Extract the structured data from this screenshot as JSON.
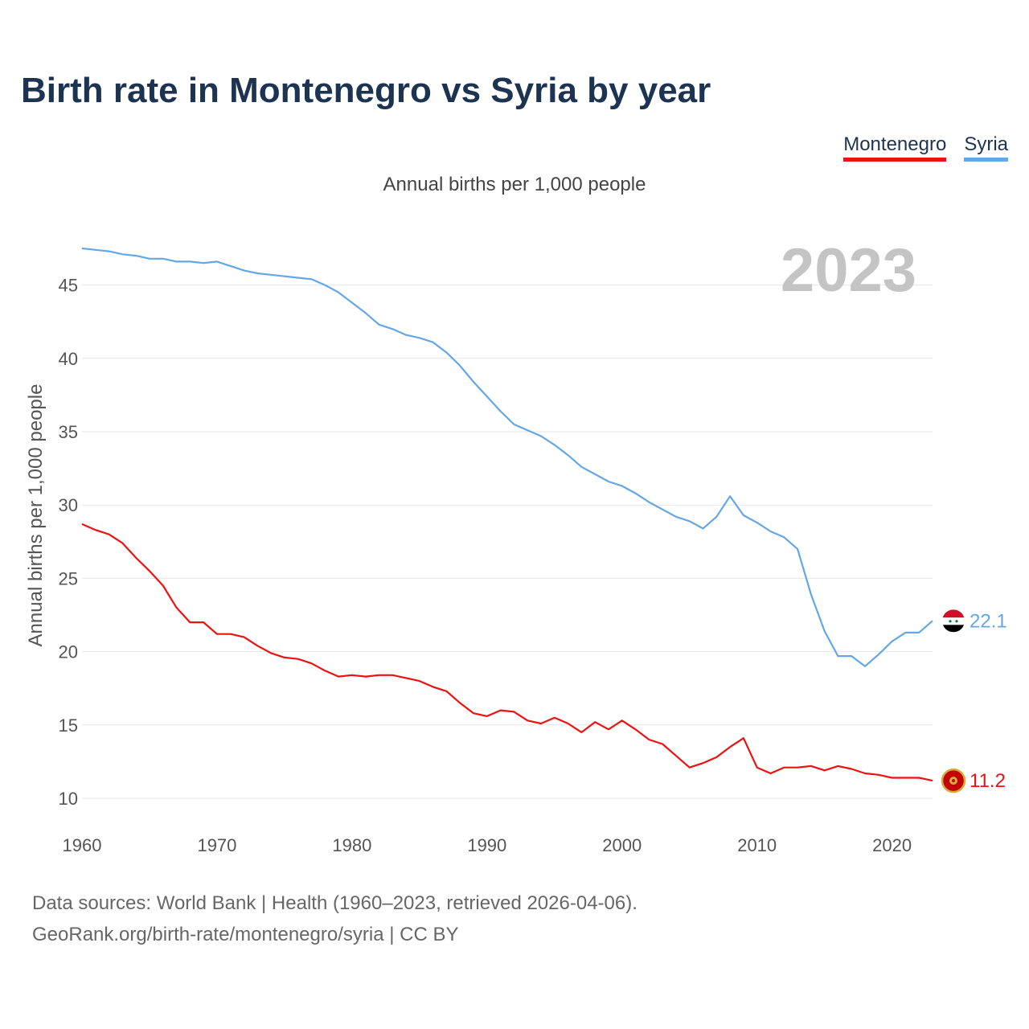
{
  "title": "Birth rate in Montenegro vs Syria by year",
  "legend": [
    {
      "label": "Montenegro",
      "color": "#ee1111"
    },
    {
      "label": "Syria",
      "color": "#65a7e6"
    }
  ],
  "subtitle": "Annual births per 1,000 people",
  "year_watermark": "2023",
  "source_line1": "Data sources: World Bank | Health (1960–2023, retrieved 2026-04-06).",
  "source_line2": "GeoRank.org/birth-rate/montenegro/syria | CC BY",
  "chart_data": {
    "type": "line",
    "title": "Birth rate in Montenegro vs Syria by year",
    "xlabel": "",
    "ylabel": "Annual births per 1,000 people",
    "xlim": [
      1960,
      2023
    ],
    "ylim": [
      10,
      47.5
    ],
    "x_ticks": [
      1960,
      1970,
      1980,
      1990,
      2000,
      2010,
      2020
    ],
    "y_ticks": [
      10,
      15,
      20,
      25,
      30,
      35,
      40,
      45
    ],
    "grid": true,
    "legend_position": "top-right",
    "x": [
      1960,
      1961,
      1962,
      1963,
      1964,
      1965,
      1966,
      1967,
      1968,
      1969,
      1970,
      1971,
      1972,
      1973,
      1974,
      1975,
      1976,
      1977,
      1978,
      1979,
      1980,
      1981,
      1982,
      1983,
      1984,
      1985,
      1986,
      1987,
      1988,
      1989,
      1990,
      1991,
      1992,
      1993,
      1994,
      1995,
      1996,
      1997,
      1998,
      1999,
      2000,
      2001,
      2002,
      2003,
      2004,
      2005,
      2006,
      2007,
      2008,
      2009,
      2010,
      2011,
      2012,
      2013,
      2014,
      2015,
      2016,
      2017,
      2018,
      2019,
      2020,
      2021,
      2022,
      2023
    ],
    "series": [
      {
        "name": "Montenegro",
        "color": "#ee1111",
        "end_label": "11.2",
        "values": [
          28.7,
          28.3,
          28.0,
          27.4,
          26.4,
          25.5,
          24.5,
          23.0,
          22.0,
          22.0,
          21.2,
          21.2,
          21.0,
          20.4,
          19.9,
          19.6,
          19.5,
          19.2,
          18.7,
          18.3,
          18.4,
          18.3,
          18.4,
          18.4,
          18.2,
          18.0,
          17.6,
          17.3,
          16.5,
          15.8,
          15.6,
          16.0,
          15.9,
          15.3,
          15.1,
          15.5,
          15.1,
          14.5,
          15.2,
          14.7,
          15.3,
          14.7,
          14.0,
          13.7,
          12.9,
          12.1,
          12.4,
          12.8,
          13.5,
          14.1,
          12.1,
          11.7,
          12.1,
          12.1,
          12.2,
          11.9,
          12.2,
          12.0,
          11.7,
          11.6,
          11.4,
          11.4,
          11.4,
          11.2
        ]
      },
      {
        "name": "Syria",
        "color": "#65a7e6",
        "end_label": "22.1",
        "values": [
          47.5,
          47.4,
          47.3,
          47.1,
          47.0,
          46.8,
          46.8,
          46.6,
          46.6,
          46.5,
          46.6,
          46.3,
          46.0,
          45.8,
          45.7,
          45.6,
          45.5,
          45.4,
          45.0,
          44.5,
          43.8,
          43.1,
          42.3,
          42.0,
          41.6,
          41.4,
          41.1,
          40.4,
          39.5,
          38.4,
          37.4,
          36.4,
          35.5,
          35.1,
          34.7,
          34.1,
          33.4,
          32.6,
          32.1,
          31.6,
          31.3,
          30.8,
          30.2,
          29.7,
          29.2,
          28.9,
          28.4,
          29.2,
          30.6,
          29.3,
          28.8,
          28.2,
          27.8,
          27.0,
          23.9,
          21.4,
          19.7,
          19.7,
          19.0,
          19.8,
          20.7,
          21.3,
          21.3,
          22.1
        ]
      }
    ]
  }
}
